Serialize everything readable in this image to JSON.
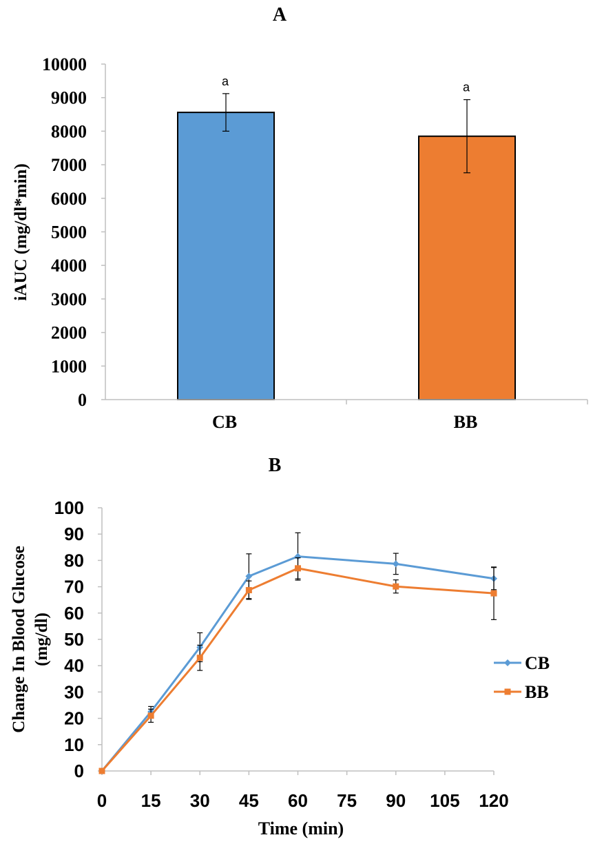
{
  "chart_data": [
    {
      "type": "bar",
      "panel": "A",
      "title": "A",
      "ylabel": "iAUC (mg/dl*min)",
      "xlabel": "",
      "categories": [
        "CB",
        "BB"
      ],
      "values": [
        8560,
        7850
      ],
      "errors": [
        560,
        1090
      ],
      "annotations": [
        "a",
        "a"
      ],
      "ylim": [
        0,
        10000
      ],
      "yticks": [
        0,
        1000,
        2000,
        3000,
        4000,
        5000,
        6000,
        7000,
        8000,
        9000,
        10000
      ],
      "colors": [
        "#5b9bd5",
        "#ed7d31"
      ],
      "grid": false
    },
    {
      "type": "line",
      "panel": "B",
      "title": "B",
      "ylabel": "Change In Blood Glucose (mg/dl)",
      "xlabel": "Time (min)",
      "x": [
        0,
        15,
        30,
        45,
        60,
        90,
        120
      ],
      "xticks": [
        0,
        15,
        30,
        45,
        60,
        75,
        90,
        105,
        120
      ],
      "xlim": [
        0,
        120
      ],
      "ylim": [
        0,
        100
      ],
      "yticks": [
        0,
        10,
        20,
        30,
        40,
        50,
        60,
        70,
        80,
        90,
        100
      ],
      "legend_position": "right",
      "grid": false,
      "series": [
        {
          "name": "CB",
          "color": "#5b9bd5",
          "marker": "diamond",
          "values": [
            0,
            22.5,
            47,
            74,
            81.5,
            78.7,
            73.1
          ],
          "errors": [
            0,
            2,
            5.5,
            8.5,
            9,
            4,
            4.2
          ]
        },
        {
          "name": "BB",
          "color": "#ed7d31",
          "marker": "square",
          "values": [
            0,
            21,
            43,
            68.7,
            77,
            70.1,
            67.5
          ],
          "errors": [
            0,
            2.5,
            4.8,
            3.5,
            4,
            2.5,
            10
          ]
        }
      ]
    }
  ]
}
